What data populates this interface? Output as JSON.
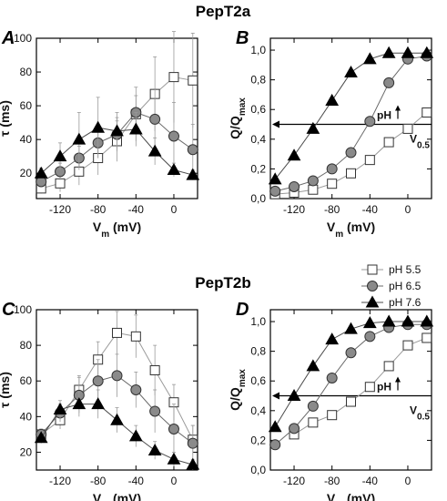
{
  "figure": {
    "section_titles": [
      "PepT2a",
      "PepT2b"
    ],
    "legend": [
      {
        "label": "pH 5.5",
        "marker": "square",
        "fill": "#ffffff"
      },
      {
        "label": "pH 6.5",
        "marker": "circle",
        "fill": "#8a8a8a"
      },
      {
        "label": "pH 7.6",
        "marker": "triangle",
        "fill": "#000000"
      }
    ]
  },
  "chart_data": [
    {
      "panel": "A",
      "type": "line",
      "section": "PepT2a",
      "xlabel": "V_m (mV)",
      "ylabel": "τ (ms)",
      "xlim": [
        -145,
        25
      ],
      "ylim": [
        5,
        100
      ],
      "xticks": [
        -120,
        -80,
        -40,
        0
      ],
      "yticks": [
        20,
        40,
        60,
        80,
        100
      ],
      "x": [
        -140,
        -120,
        -100,
        -80,
        -60,
        -40,
        -20,
        0,
        20
      ],
      "series": [
        {
          "name": "pH 5.5",
          "values": [
            11,
            14,
            21,
            29,
            39,
            55,
            67,
            77,
            75
          ],
          "err": [
            3,
            5,
            8,
            10,
            12,
            16,
            22,
            27,
            28
          ]
        },
        {
          "name": "pH 6.5",
          "values": [
            15,
            21,
            29,
            38,
            43,
            56,
            52,
            42,
            34
          ],
          "err": [
            3,
            5,
            7,
            9,
            10,
            10,
            18,
            20,
            15
          ]
        },
        {
          "name": "pH 7.6",
          "values": [
            20,
            30,
            40,
            47,
            45,
            46,
            33,
            22,
            19
          ],
          "err": [
            3,
            8,
            16,
            18,
            11,
            10,
            8,
            4,
            3
          ]
        }
      ]
    },
    {
      "panel": "B",
      "type": "line",
      "section": "PepT2a",
      "xlabel": "V_m (mV)",
      "ylabel": "Q/Q_max",
      "xlim": [
        -145,
        25
      ],
      "ylim": [
        0,
        1.08
      ],
      "xticks": [
        -120,
        -80,
        -40,
        0
      ],
      "yticks": [
        "0,0",
        "0,2",
        "0,4",
        "0,6",
        "0,8",
        "1,0"
      ],
      "x": [
        -140,
        -120,
        -100,
        -80,
        -60,
        -40,
        -20,
        0,
        20
      ],
      "series": [
        {
          "name": "pH 5.5",
          "values": [
            0.03,
            0.04,
            0.06,
            0.1,
            0.17,
            0.26,
            0.38,
            0.47,
            0.58
          ]
        },
        {
          "name": "pH 6.5",
          "values": [
            0.05,
            0.08,
            0.12,
            0.2,
            0.31,
            0.52,
            0.78,
            0.94,
            0.96
          ]
        },
        {
          "name": "pH 7.6",
          "values": [
            0.13,
            0.29,
            0.47,
            0.66,
            0.85,
            0.94,
            0.98,
            0.98,
            0.98
          ]
        }
      ],
      "annotations": {
        "arrow_label": "pH",
        "level_label": "V_0.5",
        "level": 0.5
      }
    },
    {
      "panel": "C",
      "type": "line",
      "section": "PepT2b",
      "xlabel": "V_m (mV)",
      "ylabel": "τ (ms)",
      "xlim": [
        -145,
        25
      ],
      "ylim": [
        10,
        100
      ],
      "xticks": [
        -120,
        -80,
        -40,
        0
      ],
      "yticks": [
        20,
        40,
        60,
        80,
        100
      ],
      "x": [
        -140,
        -120,
        -100,
        -80,
        -60,
        -40,
        -20,
        0,
        20
      ],
      "series": [
        {
          "name": "pH 5.5",
          "values": [
            30,
            38,
            55,
            72,
            87,
            85,
            66,
            48,
            27
          ],
          "err": [
            3,
            5,
            8,
            10,
            12,
            12,
            14,
            10,
            8
          ]
        },
        {
          "name": "pH 6.5",
          "values": [
            30,
            42,
            52,
            60,
            63,
            55,
            43,
            33,
            25
          ],
          "err": [
            3,
            5,
            10,
            12,
            12,
            10,
            12,
            14,
            10
          ]
        },
        {
          "name": "pH 7.6",
          "values": [
            28,
            44,
            47,
            47,
            38,
            29,
            21,
            16,
            13
          ],
          "err": [
            3,
            5,
            7,
            8,
            7,
            6,
            5,
            4,
            3
          ]
        }
      ]
    },
    {
      "panel": "D",
      "type": "line",
      "section": "PepT2b",
      "xlabel": "V_m (mV)",
      "ylabel": "Q/Q_max",
      "xlim": [
        -145,
        25
      ],
      "ylim": [
        0,
        1.08
      ],
      "xticks": [
        -120,
        -80,
        -40,
        0
      ],
      "yticks": [
        "0,0",
        "0,2",
        "0,4",
        "0,6",
        "0,8",
        "1,0"
      ],
      "x": [
        -140,
        -120,
        -100,
        -80,
        -60,
        -40,
        -20,
        0,
        20
      ],
      "series": [
        {
          "name": "pH 5.5",
          "values": [
            null,
            0.24,
            0.32,
            0.37,
            0.46,
            0.56,
            0.7,
            0.84,
            0.89
          ]
        },
        {
          "name": "pH 6.5",
          "values": [
            0.17,
            0.28,
            0.43,
            0.62,
            0.79,
            0.9,
            0.96,
            0.98,
            0.98
          ]
        },
        {
          "name": "pH 7.6",
          "values": [
            0.29,
            0.5,
            0.7,
            0.88,
            0.95,
            0.99,
            1.0,
            1.0,
            1.0
          ]
        }
      ],
      "annotations": {
        "arrow_label": "pH",
        "level_label": "V_0.5",
        "level": 0.5
      }
    }
  ]
}
